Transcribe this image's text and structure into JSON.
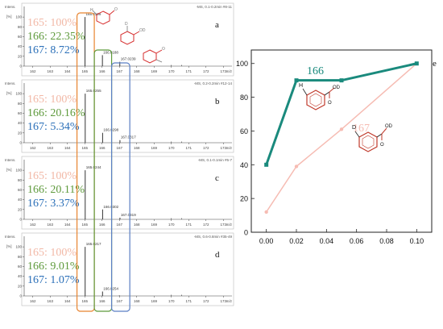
{
  "colors": {
    "c165": "#f2b8a6",
    "c166": "#5e9a3c",
    "c167": "#2a6fb8",
    "teal": "#1a8a7d",
    "pink": "#f6bcb3",
    "box165": "#e8832e",
    "box166": "#5e9a3c",
    "box167": "#5b7fc4",
    "spectrum": "#333333"
  },
  "chart_data": [
    {
      "type": "line",
      "panel": "a",
      "y_axis_title": "Intens.\n[%]",
      "header": "-MS, 0.1-0.2min #8-11",
      "x": [
        165.0139,
        166.0188,
        167.0239
      ],
      "y": [
        100,
        22.35,
        8.72
      ],
      "peak_labels": [
        "165.0139",
        "166.0188",
        "167.0239"
      ],
      "ratio_lines": [
        "165: 100%",
        "166: 22.35%",
        "167: 8.72%"
      ],
      "xlim": [
        161.5,
        173.5
      ],
      "ylim": [
        0,
        115
      ],
      "xticks": [
        "162",
        "163",
        "164",
        "165",
        "166",
        "167",
        "168",
        "169",
        "170",
        "171",
        "172",
        "173"
      ],
      "yticks": [
        "0",
        "20",
        "40",
        "60",
        "80",
        "100"
      ],
      "xunit": "m/z"
    },
    {
      "type": "line",
      "panel": "b",
      "y_axis_title": "Intens.\n[%]",
      "header": "-MS, 0.2-0.2min #12-14",
      "x": [
        165.0255,
        166.0298,
        167.0317
      ],
      "y": [
        100,
        20.16,
        5.34
      ],
      "peak_labels": [
        "165.0255",
        "166.0298",
        "167.0317"
      ],
      "ratio_lines": [
        "165: 100%",
        "166: 20.16%",
        "167: 5.34%"
      ],
      "xlim": [
        161.5,
        173.5
      ],
      "ylim": [
        0,
        115
      ],
      "xticks": [
        "162",
        "163",
        "164",
        "165",
        "166",
        "167",
        "168",
        "169",
        "170",
        "171",
        "172",
        "173"
      ],
      "yticks": [
        "0",
        "20",
        "40",
        "60",
        "80",
        "100"
      ],
      "xunit": "m/z"
    },
    {
      "type": "line",
      "panel": "c",
      "y_axis_title": "Intens.\n[%]",
      "header": "-MS, 0.1-0.1min #5-7",
      "x": [
        165.0244,
        166.0302,
        167.0319
      ],
      "y": [
        100,
        20.11,
        3.37
      ],
      "peak_labels": [
        "165.0244",
        "166.0302",
        "167.0319"
      ],
      "ratio_lines": [
        "165: 100%",
        "166: 20.11%",
        "167: 3.37%"
      ],
      "xlim": [
        161.5,
        173.5
      ],
      "ylim": [
        0,
        115
      ],
      "xticks": [
        "162",
        "163",
        "164",
        "165",
        "166",
        "167",
        "168",
        "169",
        "170",
        "171",
        "172",
        "173"
      ],
      "yticks": [
        "0",
        "20",
        "40",
        "60",
        "80",
        "100"
      ],
      "xunit": "m/z"
    },
    {
      "type": "line",
      "panel": "d",
      "y_axis_title": "Intens.\n[%]",
      "header": "-MS, 0.6-0.8min #35-49",
      "x": [
        165.0217,
        166.0254,
        167.0
      ],
      "y": [
        100,
        9.01,
        1.07
      ],
      "peak_labels": [
        "165.0217",
        "166.0254",
        ""
      ],
      "ratio_lines": [
        "165: 100%",
        "166: 9.01%",
        "167: 1.07%"
      ],
      "xlim": [
        161.5,
        173.5
      ],
      "ylim": [
        0,
        115
      ],
      "xticks": [
        "162",
        "163",
        "164",
        "165",
        "166",
        "167",
        "168",
        "169",
        "170",
        "171",
        "172",
        "173"
      ],
      "yticks": [
        "0",
        "20",
        "40",
        "60",
        "80",
        "100"
      ],
      "xunit": "m/z"
    },
    {
      "type": "line",
      "panel": "e",
      "x": [
        0.0,
        0.02,
        0.05,
        0.1
      ],
      "series": [
        {
          "name": "166",
          "values": [
            40,
            90,
            90,
            100
          ]
        },
        {
          "name": "167",
          "values": [
            12,
            39,
            61,
            100
          ]
        }
      ],
      "xlim": [
        -0.01,
        0.11
      ],
      "ylim": [
        0,
        108
      ],
      "xticks": [
        "0.00",
        "0.02",
        "0.04",
        "0.06",
        "0.08",
        "0.10"
      ],
      "yticks": [
        "0",
        "20",
        "40",
        "60",
        "80",
        "100"
      ]
    }
  ],
  "molecule_labels": {
    "H": "H",
    "D": "D",
    "OD": "OD",
    "O": "O"
  }
}
